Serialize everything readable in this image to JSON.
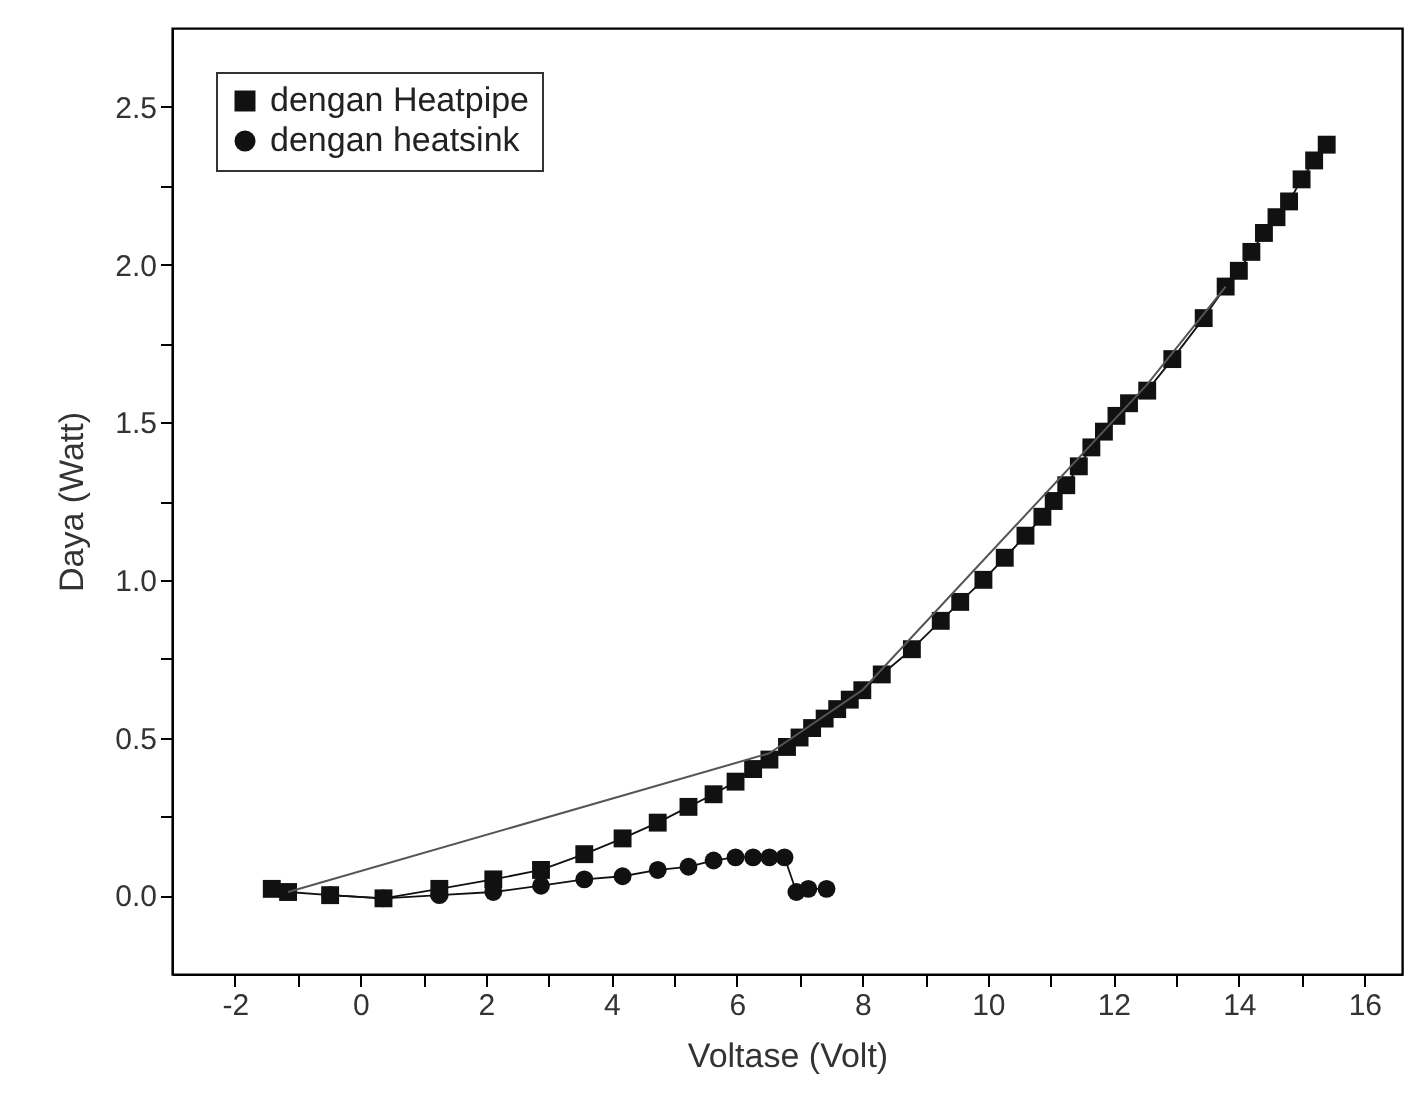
{
  "chart_data": {
    "type": "line",
    "xlabel": "Voltase (Volt)",
    "ylabel": "Daya (Watt)",
    "xlim": [
      -3,
      16.6
    ],
    "ylim": [
      -0.25,
      2.75
    ],
    "xticks": [
      -2,
      {
        "value": -1,
        "label": null
      },
      0,
      {
        "value": 1,
        "label": null
      },
      2,
      {
        "value": 3,
        "label": null
      },
      4,
      {
        "value": 5,
        "label": null
      },
      6,
      {
        "value": 7,
        "label": null
      },
      8,
      {
        "value": 9,
        "label": null
      },
      10,
      {
        "value": 11,
        "label": null
      },
      12,
      {
        "value": 13,
        "label": null
      },
      14,
      {
        "value": 15,
        "label": null
      },
      16
    ],
    "yticks": [
      {
        "value": 0,
        "label": "0.0"
      },
      {
        "value": 0.25,
        "label": null
      },
      {
        "value": 0.5,
        "label": "0.5"
      },
      {
        "value": 0.75,
        "label": null
      },
      {
        "value": 1,
        "label": "1.0"
      },
      {
        "value": 1.25,
        "label": null
      },
      {
        "value": 1.5,
        "label": "1.5"
      },
      {
        "value": 1.75,
        "label": null
      },
      {
        "value": 2,
        "label": "2.0"
      },
      {
        "value": 2.25,
        "label": null
      },
      {
        "value": 2.5,
        "label": "2.5"
      }
    ],
    "grid": false,
    "legend": "top left",
    "line_style": "solid",
    "series": [
      {
        "name": "dengan Heatpipe",
        "color": "#111111",
        "marker": "square",
        "x": [
          -1.41,
          -1.15,
          -0.48,
          0.37,
          1.26,
          2.12,
          2.88,
          3.57,
          4.18,
          4.74,
          5.23,
          5.63,
          5.98,
          6.26,
          6.52,
          6.8,
          7.0,
          7.2,
          7.4,
          7.6,
          7.8,
          8.0,
          8.31,
          8.79,
          9.25,
          9.56,
          9.93,
          10.27,
          10.6,
          10.87,
          11.05,
          11.25,
          11.45,
          11.65,
          11.85,
          12.05,
          12.25,
          12.54,
          12.94,
          13.44,
          13.79,
          14.0,
          14.2,
          14.4,
          14.6,
          14.8,
          15.0,
          15.2,
          15.4
        ],
        "values": [
          0.02,
          0.01,
          0.0,
          -0.01,
          0.02,
          0.05,
          0.08,
          0.13,
          0.18,
          0.23,
          0.28,
          0.32,
          0.36,
          0.4,
          0.43,
          0.47,
          0.5,
          0.53,
          0.56,
          0.59,
          0.62,
          0.65,
          0.7,
          0.78,
          0.87,
          0.93,
          1.0,
          1.07,
          1.14,
          1.2,
          1.25,
          1.3,
          1.36,
          1.42,
          1.47,
          1.52,
          1.56,
          1.6,
          1.7,
          1.83,
          1.93,
          1.98,
          2.04,
          2.1,
          2.15,
          2.2,
          2.27,
          2.33,
          2.38
        ]
      },
      {
        "name": "dengan heatsink",
        "color": "#111111",
        "marker": "circle",
        "x": [
          -0.48,
          0.37,
          1.26,
          2.12,
          2.88,
          3.57,
          4.18,
          4.74,
          5.23,
          5.63,
          5.98,
          6.26,
          6.52,
          6.76,
          6.95,
          7.14,
          7.43
        ],
        "values": [
          0.0,
          -0.01,
          0.0,
          0.01,
          0.03,
          0.05,
          0.06,
          0.08,
          0.09,
          0.11,
          0.12,
          0.12,
          0.12,
          0.12,
          0.01,
          0.02,
          0.02
        ]
      },
      {
        "type": "line",
        "color": "#555555",
        "marker": "none",
        "x": [
          -1.15,
          6.52,
          8.0,
          12.54,
          13.79
        ],
        "values": [
          0.01,
          0.45,
          0.65,
          1.62,
          1.93
        ]
      }
    ]
  }
}
